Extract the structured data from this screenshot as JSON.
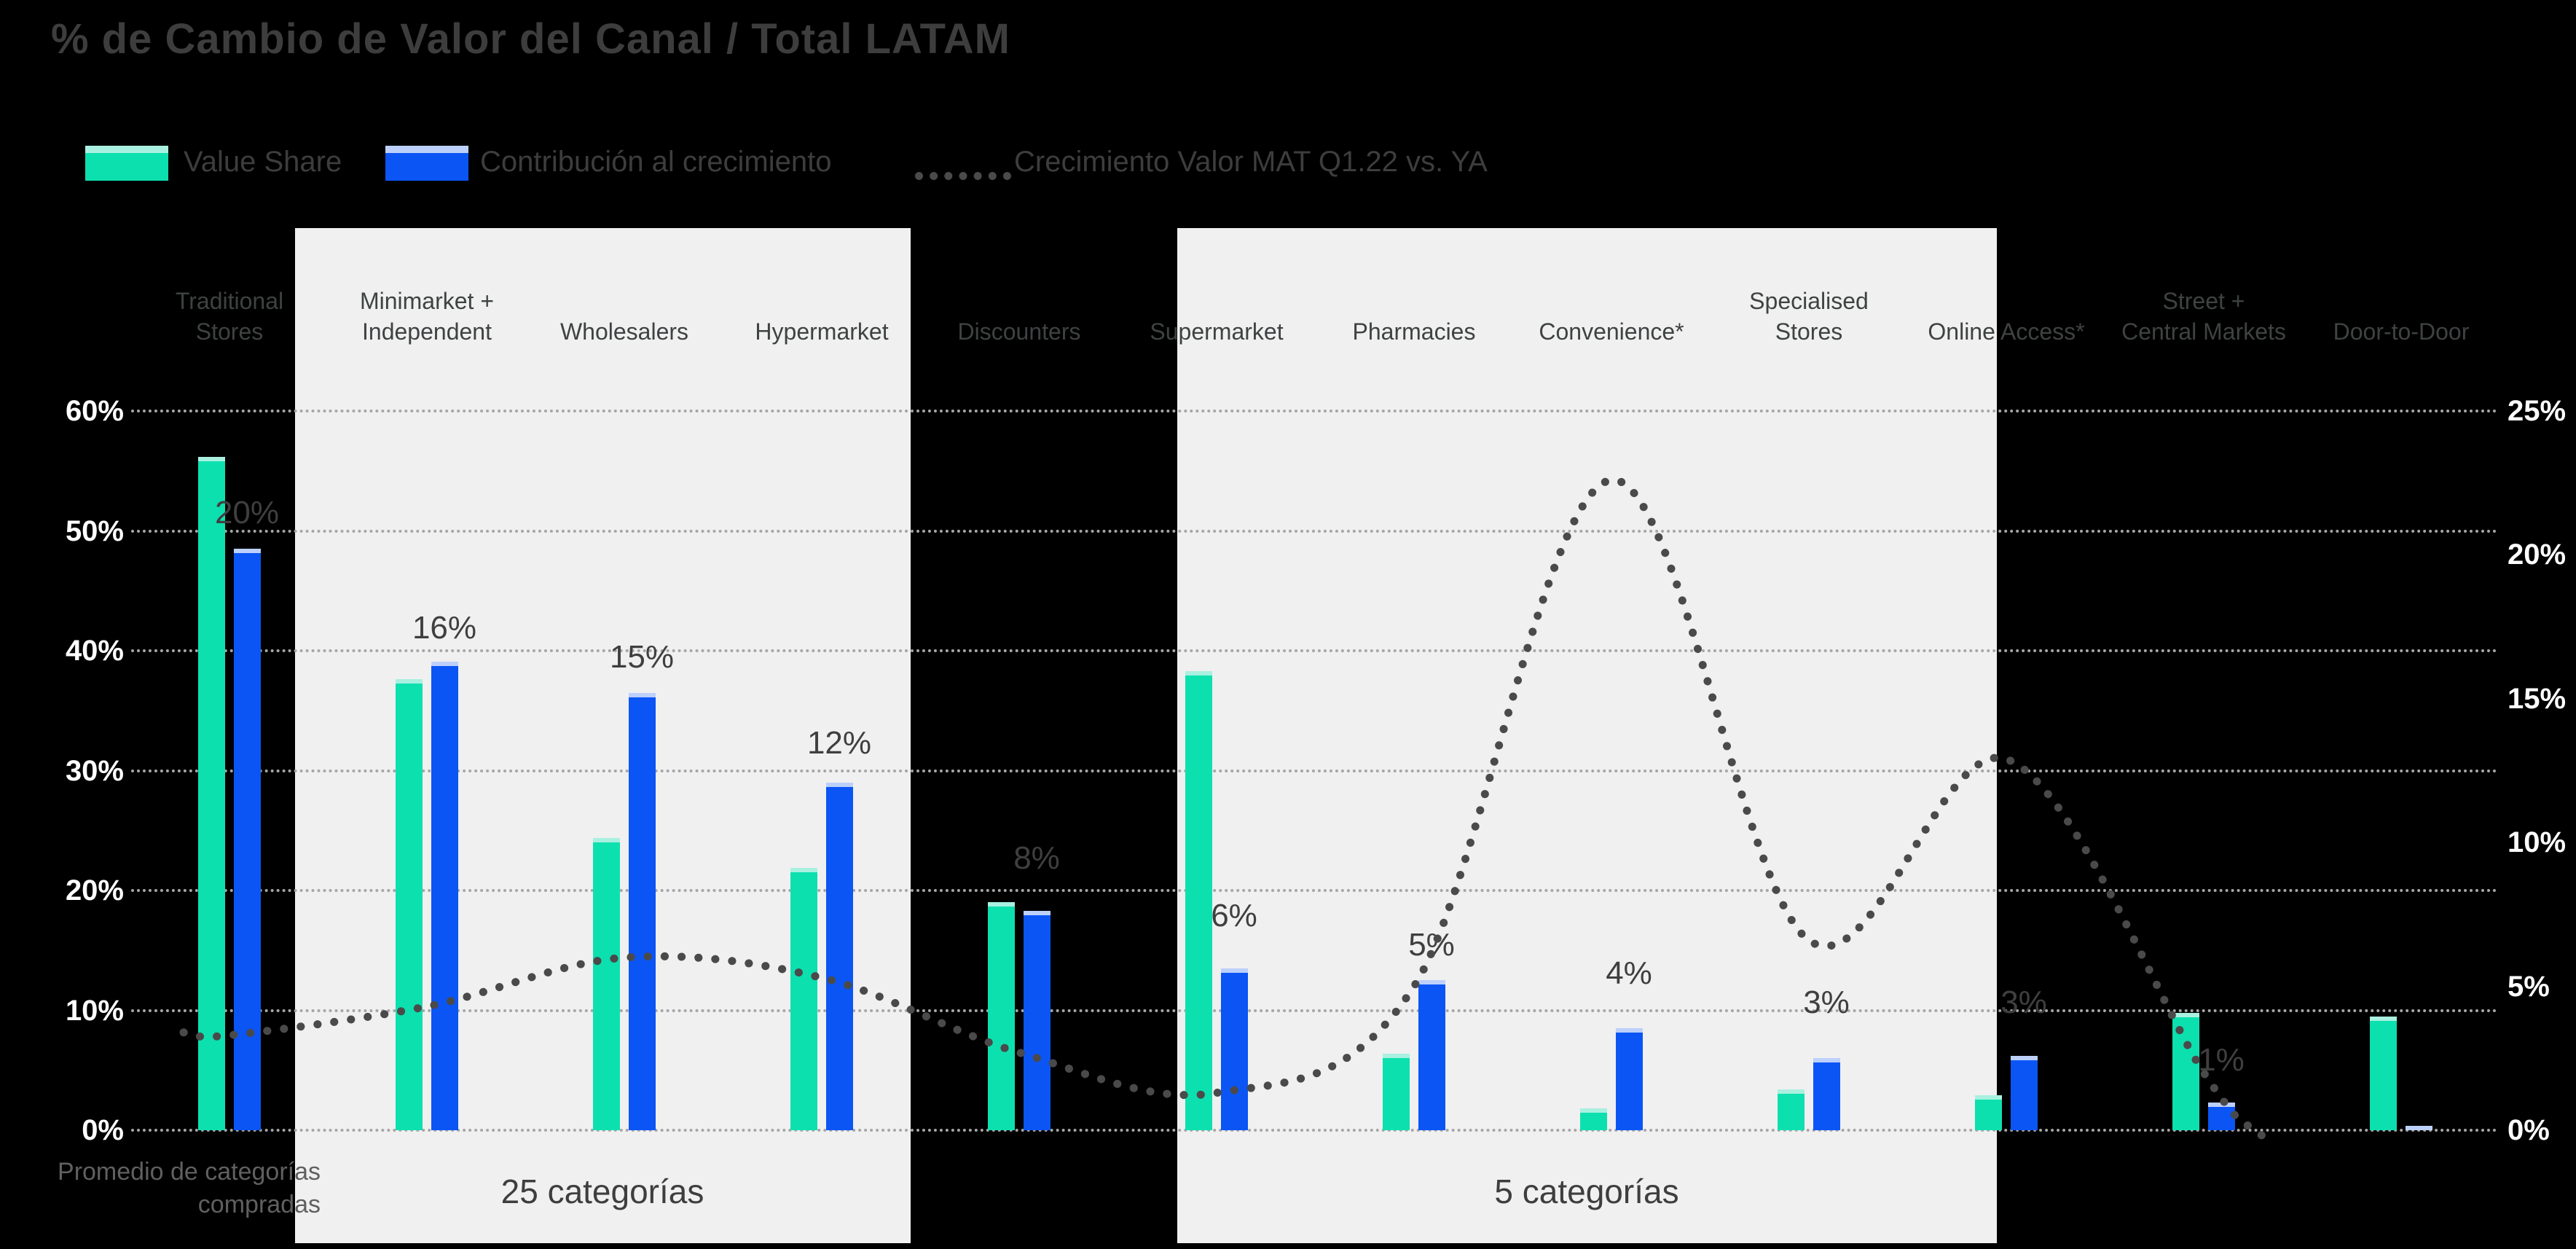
{
  "title": "% de Cambio de Valor del Canal / Total LATAM",
  "colors": {
    "background": "#000000",
    "teal": "#0de0af",
    "teal_cap": "#a9f0e0",
    "blue": "#0b55f5",
    "blue_cap": "#bcd0fa",
    "dotted_line": "#4a4a4a",
    "gridline": "#a6a6a6",
    "panel": "#f0f0f0",
    "axis_text": "#ffffff",
    "dark_text": "#3d3d3d"
  },
  "chart_data": {
    "type": "combo-bar-line",
    "title": "% de Cambio de Valor del Canal / Total LATAM",
    "categories": [
      "Traditional Stores",
      "Minimarket + Independent",
      "Wholesalers",
      "Hypermarket",
      "Discounters",
      "Supermarket",
      "Pharmacies",
      "Convenience*",
      "Specialised Stores",
      "Online Access*",
      "Street + Central Markets",
      "Door-to-Door"
    ],
    "category_label_lines": [
      [
        "Traditional",
        "Stores"
      ],
      [
        "Minimarket +",
        "Independent"
      ],
      [
        "Wholesalers"
      ],
      [
        "Hypermarket"
      ],
      [
        "Discounters"
      ],
      [
        "Supermarket"
      ],
      [
        "Pharmacies"
      ],
      [
        "Convenience*"
      ],
      [
        "Specialised",
        "Stores"
      ],
      [
        "Online Access*"
      ],
      [
        "Street +",
        "Central Markets"
      ],
      [
        "Door-to-Door"
      ]
    ],
    "series": [
      {
        "name": "Value Share",
        "type": "bar",
        "axis": "left",
        "values": [
          56.2,
          37.6,
          24.4,
          21.9,
          19.0,
          38.3,
          6.4,
          1.8,
          3.4,
          2.9,
          9.8,
          9.5
        ]
      },
      {
        "name": "Contribución al crecimiento",
        "type": "bar",
        "axis": "left",
        "values": [
          48.5,
          39.1,
          36.5,
          29.0,
          18.3,
          13.5,
          12.5,
          8.5,
          6.0,
          6.2,
          2.3,
          0
        ]
      },
      {
        "name": "Crecimiento Valor MAT Q1.22 vs. YA",
        "type": "dotted-line",
        "axis": "right",
        "values": [
          3.3,
          4.3,
          6.0,
          5.3,
          2.7,
          1.3,
          5.0,
          22.6,
          6.6,
          12.9,
          2.0,
          null
        ]
      }
    ],
    "annotations": [
      "20%",
      "16%",
      "15%",
      "12%",
      "8%",
      "6%",
      "5%",
      "4%",
      "3%",
      "3%",
      "1%",
      null
    ],
    "left_axis": {
      "range": [
        0,
        60
      ],
      "ticks": [
        "0%",
        "10%",
        "20%",
        "30%",
        "40%",
        "50%",
        "60%"
      ]
    },
    "right_axis": {
      "range": [
        0,
        25
      ],
      "ticks": [
        "0%",
        "5%",
        "10%",
        "15%",
        "20%",
        "25%"
      ]
    },
    "grid": true,
    "legend_position": "top",
    "highlight_panels": [
      {
        "label": "25 categorías",
        "covers": [
          "Minimarket + Independent",
          "Wholesalers",
          "Hypermarket"
        ]
      },
      {
        "label": "5 categorías",
        "covers": [
          "Supermarket",
          "Pharmacies",
          "Convenience*",
          "Specialised Stores",
          "Online Access*"
        ]
      }
    ],
    "footer_note": "Promedio de categorías compradas"
  }
}
